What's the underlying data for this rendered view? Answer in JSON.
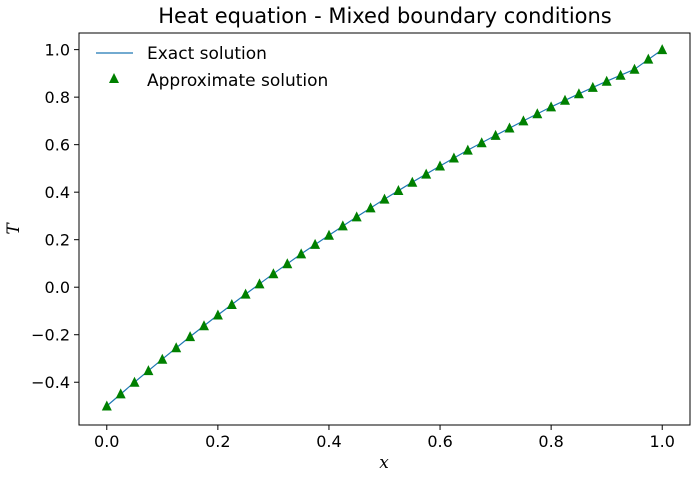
{
  "chart_data": {
    "type": "line",
    "title": "Heat equation - Mixed boundary conditions",
    "xlabel": "x",
    "ylabel": "T",
    "xlim": [
      -0.05,
      1.05
    ],
    "ylim": [
      -0.58,
      1.07
    ],
    "xticks": [
      0.0,
      0.2,
      0.4,
      0.6,
      0.8,
      1.0
    ],
    "xtick_labels": [
      "0.0",
      "0.2",
      "0.4",
      "0.6",
      "0.8",
      "1.0"
    ],
    "yticks": [
      -0.4,
      -0.2,
      0.0,
      0.2,
      0.4,
      0.6,
      0.8,
      1.0
    ],
    "ytick_labels": [
      "−0.4",
      "−0.2",
      "0.0",
      "0.2",
      "0.4",
      "0.6",
      "0.8",
      "1.0"
    ],
    "grid": false,
    "legend_position": "top-left",
    "series": [
      {
        "name": "Exact solution",
        "kind": "line",
        "color": "#1f77b4",
        "x": [
          0.0,
          0.05,
          0.1,
          0.15,
          0.2,
          0.25,
          0.3,
          0.35,
          0.4,
          0.45,
          0.5,
          0.55,
          0.6,
          0.65,
          0.7,
          0.75,
          0.8,
          0.85,
          0.9,
          0.95,
          1.0
        ],
        "y": [
          -0.5,
          -0.4,
          -0.303,
          -0.208,
          -0.117,
          -0.029,
          0.057,
          0.14,
          0.219,
          0.296,
          0.371,
          0.442,
          0.51,
          0.577,
          0.639,
          0.7,
          0.759,
          0.814,
          0.867,
          0.917,
          1.0
        ]
      },
      {
        "name": "Approximate solution",
        "kind": "scatter",
        "marker": "triangle",
        "color": "#008000",
        "x": [
          0.0,
          0.025,
          0.05,
          0.075,
          0.1,
          0.125,
          0.15,
          0.175,
          0.2,
          0.225,
          0.25,
          0.275,
          0.3,
          0.325,
          0.35,
          0.375,
          0.4,
          0.425,
          0.45,
          0.475,
          0.5,
          0.525,
          0.55,
          0.575,
          0.6,
          0.625,
          0.65,
          0.675,
          0.7,
          0.725,
          0.75,
          0.775,
          0.8,
          0.825,
          0.85,
          0.875,
          0.9,
          0.925,
          0.95,
          0.975,
          1.0
        ],
        "y": [
          -0.5,
          -0.449,
          -0.4,
          -0.351,
          -0.303,
          -0.255,
          -0.208,
          -0.162,
          -0.117,
          -0.073,
          -0.029,
          0.014,
          0.057,
          0.099,
          0.14,
          0.18,
          0.219,
          0.258,
          0.296,
          0.334,
          0.371,
          0.407,
          0.442,
          0.476,
          0.51,
          0.544,
          0.577,
          0.608,
          0.639,
          0.67,
          0.7,
          0.73,
          0.759,
          0.787,
          0.814,
          0.841,
          0.867,
          0.892,
          0.917,
          0.96,
          1.0
        ]
      }
    ]
  }
}
